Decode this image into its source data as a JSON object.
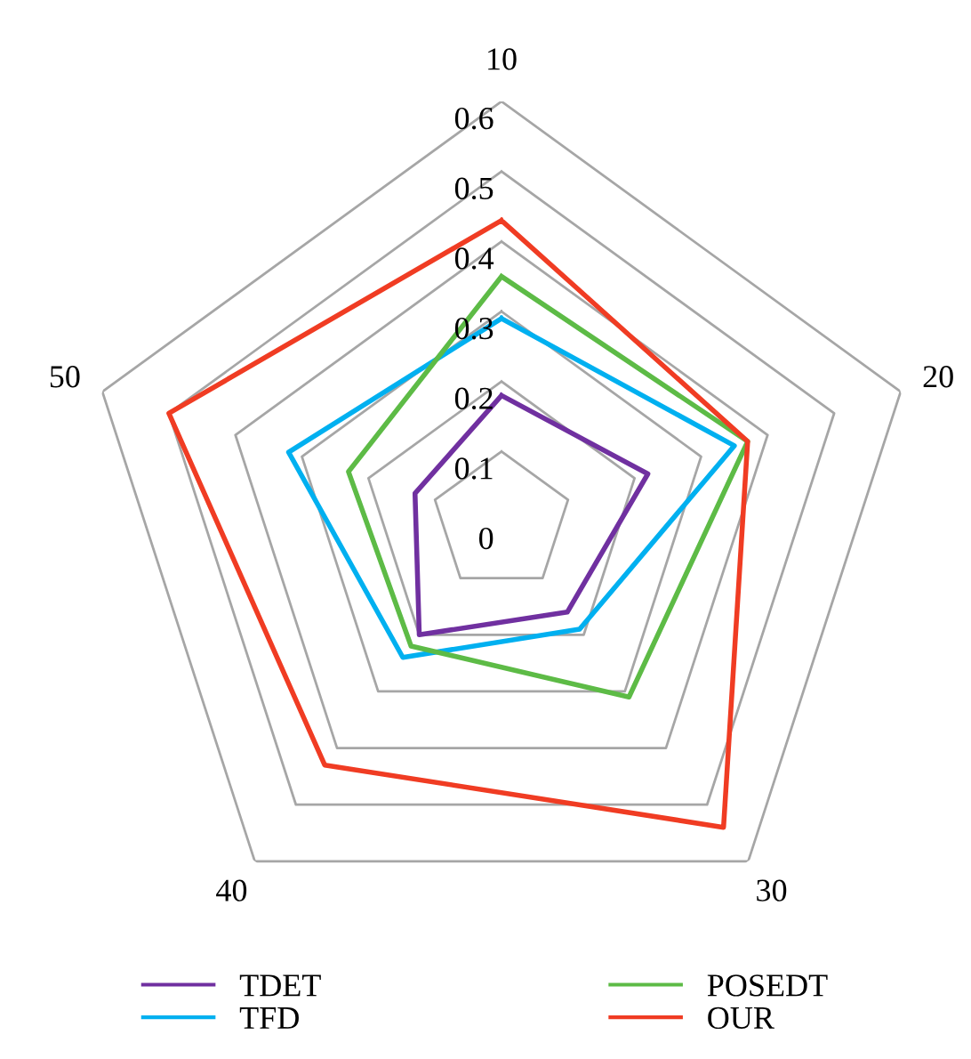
{
  "chart_data": {
    "type": "radar",
    "categories": [
      "10",
      "20",
      "30",
      "40",
      "50"
    ],
    "ylim": [
      0,
      0.6
    ],
    "yticks": [
      0,
      0.1,
      0.2,
      0.3,
      0.4,
      0.5,
      0.6
    ],
    "legend": "bottom",
    "grid": true,
    "series": [
      {
        "name": "TDET",
        "color": "#7030a0",
        "values": [
          0.18,
          0.22,
          0.16,
          0.2,
          0.13
        ]
      },
      {
        "name": "TFD",
        "color": "#00b0f0",
        "values": [
          0.29,
          0.35,
          0.19,
          0.24,
          0.32
        ]
      },
      {
        "name": "POSEDT",
        "color": "#5dbb46",
        "values": [
          0.35,
          0.37,
          0.31,
          0.22,
          0.23
        ]
      },
      {
        "name": "OUR",
        "color": "#f03c23",
        "values": [
          0.43,
          0.37,
          0.54,
          0.43,
          0.5
        ]
      }
    ]
  }
}
